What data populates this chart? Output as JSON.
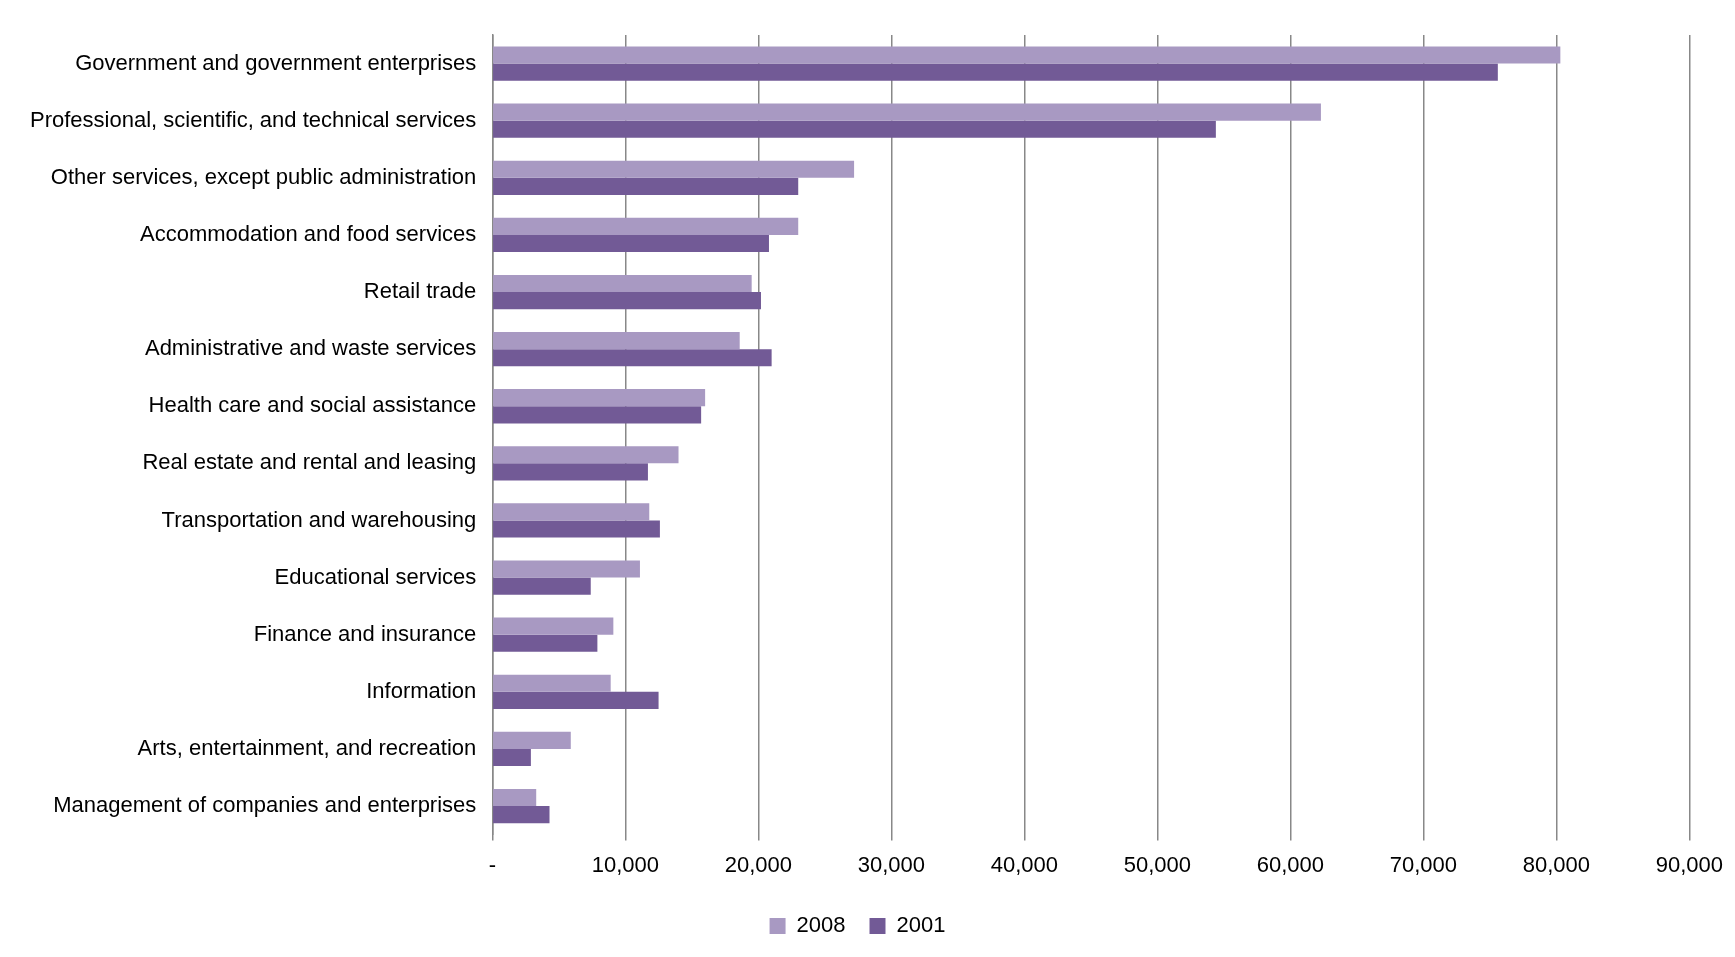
{
  "chart_data": {
    "type": "bar",
    "orientation": "horizontal",
    "categories": [
      "Government and government enterprises",
      "Professional, scientific, and technical services",
      "Other services, except public administration",
      "Accommodation and food services",
      "Retail trade",
      "Administrative and waste services",
      "Health care and social assistance",
      "Real estate and rental and leasing",
      "Transportation and warehousing",
      "Educational services",
      "Finance and insurance",
      "Information",
      "Arts, entertainment, and recreation",
      "Management of companies and enterprises"
    ],
    "series": [
      {
        "name": "2008",
        "color": "#a899c2",
        "values": [
          80300,
          62300,
          27200,
          23000,
          19500,
          18600,
          16000,
          14000,
          11800,
          11100,
          9100,
          8900,
          5900,
          3300
        ]
      },
      {
        "name": "2001",
        "color": "#725a96",
        "values": [
          75600,
          54400,
          23000,
          20800,
          20200,
          21000,
          15700,
          11700,
          12600,
          7400,
          7900,
          12500,
          2900,
          4300
        ]
      }
    ],
    "xlim": [
      0,
      90000
    ],
    "xticks": [
      {
        "value": 0,
        "label": "-"
      },
      {
        "value": 10000,
        "label": "10,000"
      },
      {
        "value": 20000,
        "label": "20,000"
      },
      {
        "value": 30000,
        "label": "30,000"
      },
      {
        "value": 40000,
        "label": "40,000"
      },
      {
        "value": 50000,
        "label": "50,000"
      },
      {
        "value": 60000,
        "label": "60,000"
      },
      {
        "value": 70000,
        "label": "70,000"
      },
      {
        "value": 80000,
        "label": "80,000"
      },
      {
        "value": 90000,
        "label": "90,000"
      }
    ],
    "grid": "x",
    "legend": "bottom"
  }
}
